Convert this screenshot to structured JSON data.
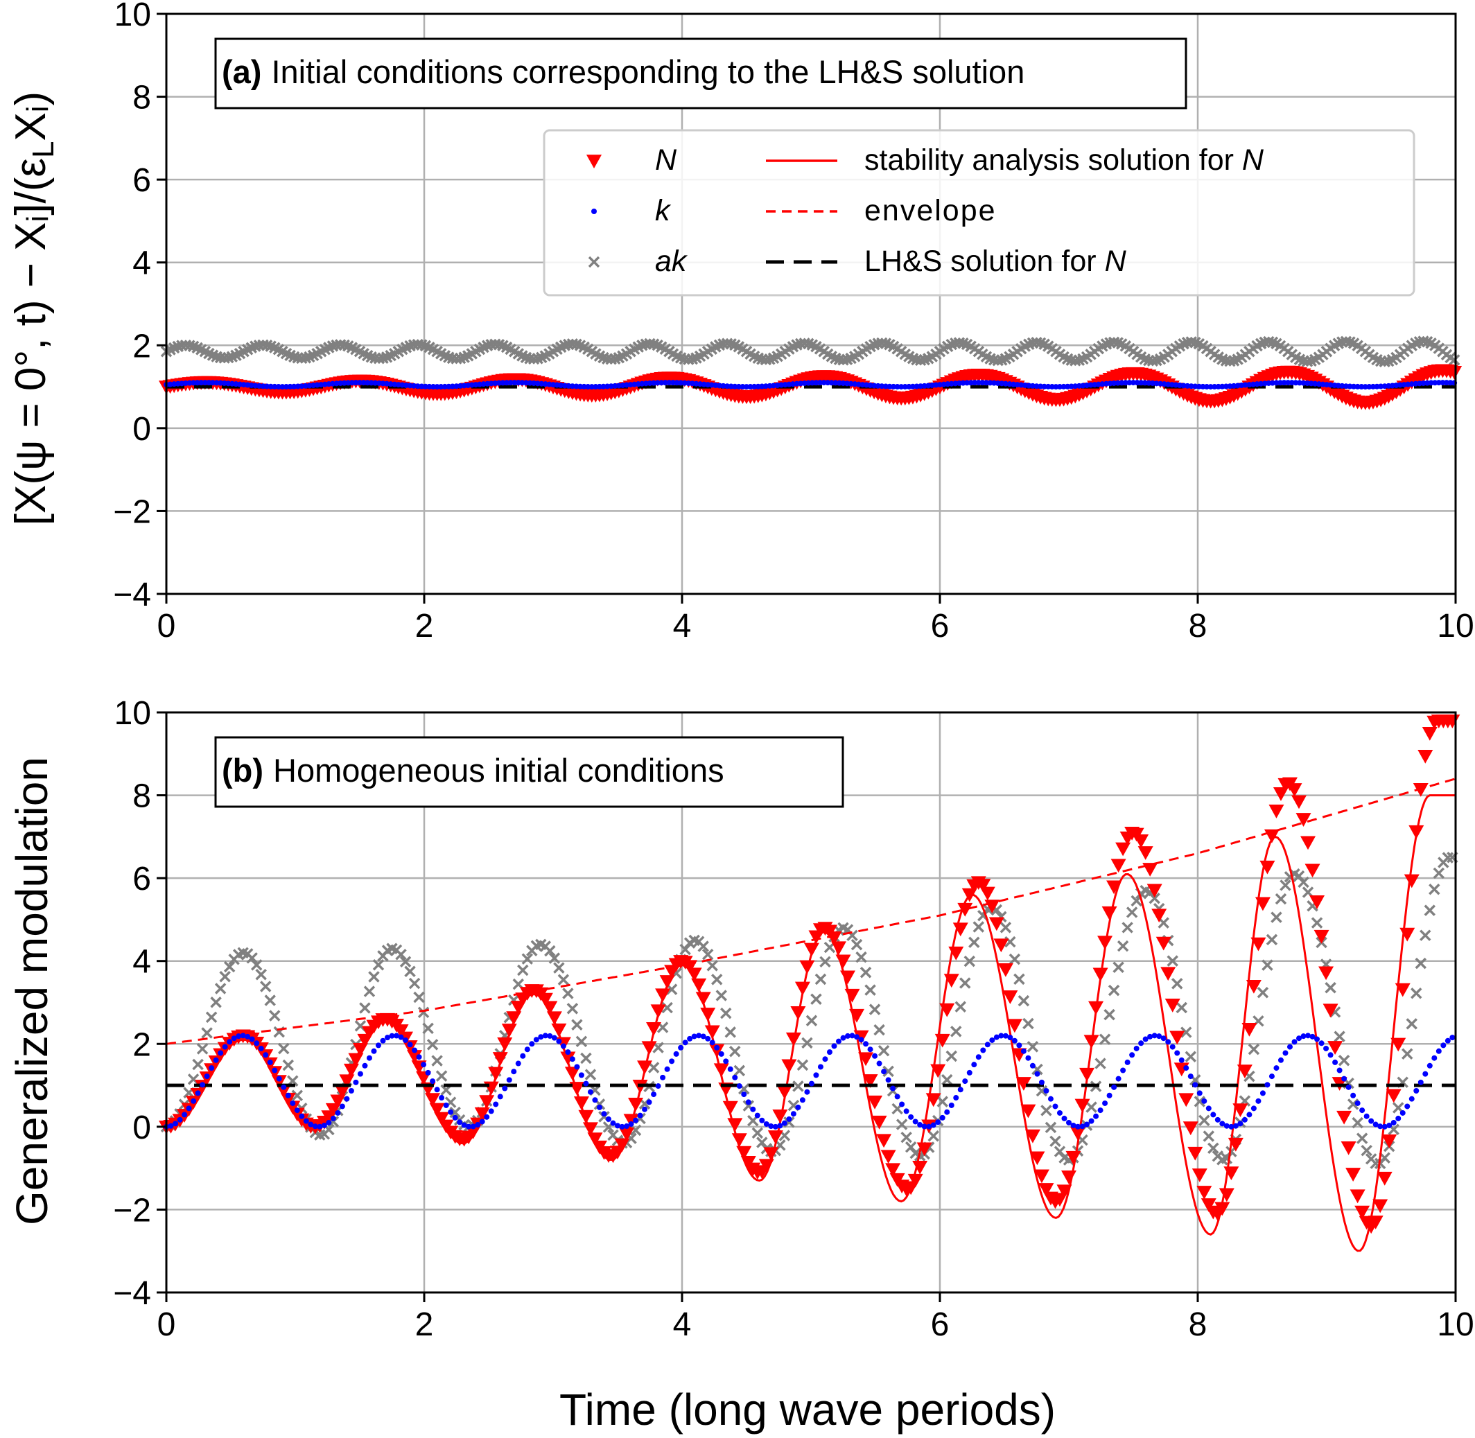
{
  "figure": {
    "ylabel_top": "[X(ψ = 0°, t) − Xᵢ]/(ε",
    "ylabel_sub": "L",
    "ylabel_tail": "Xᵢ)",
    "ylabel_main": "Generalized modulation",
    "xlabel": "Time (long wave periods)"
  },
  "legend": {
    "N": "N",
    "k": "k",
    "ak": "ak",
    "stability": "stability analysis solution for ",
    "stability_var": "N",
    "envelope": "envelope",
    "lhs": "LH&S solution for ",
    "lhs_var": "N"
  },
  "colors": {
    "N": "#ff0000",
    "k": "#0000ff",
    "ak": "#808080",
    "lhs": "#000000",
    "grid": "#b0b0b0"
  },
  "chart_data": [
    {
      "type": "line",
      "panel_tag": "(a)",
      "title": "Initial conditions corresponding to the LH&S solution",
      "xlim": [
        0,
        10
      ],
      "ylim": [
        -4,
        10
      ],
      "xticks": [
        "0",
        "2",
        "4",
        "6",
        "8",
        "10"
      ],
      "yticks": [
        "−4",
        "−2",
        "0",
        "2",
        "4",
        "6",
        "8",
        "10"
      ],
      "grid": true,
      "legend_position": "upper-right",
      "long_wave_period": 1,
      "series": [
        {
          "name": "N",
          "marker": "triangle-down",
          "color": "#ff0000",
          "description": "oscillates about 1 with amplitude growing from about 0.1 at t=0 to about 0.4 at t=10, period about 1.2",
          "mean": 1.0,
          "amp_start": 0.1,
          "amp_end": 0.4,
          "period": 1.2
        },
        {
          "name": "k",
          "marker": "dot",
          "color": "#0000ff",
          "mean": 1.05,
          "amp_start": 0.05,
          "amp_end": 0.05,
          "period": 1.2
        },
        {
          "name": "ak",
          "marker": "x",
          "color": "#808080",
          "mean": 1.85,
          "amp_start": 0.15,
          "amp_end": 0.25,
          "period": 0.6
        },
        {
          "name": "stability analysis solution for N",
          "line": "solid",
          "color": "#ff0000",
          "mean": 1.0,
          "amp_start": 0.1,
          "amp_end": 0.4,
          "period": 1.2
        },
        {
          "name": "LH&S solution for N",
          "line": "dashed",
          "color": "#000000",
          "x": [
            0,
            10
          ],
          "values": [
            1,
            1
          ]
        }
      ]
    },
    {
      "type": "line",
      "panel_tag": "(b)",
      "title": "Homogeneous initial conditions",
      "xlim": [
        0,
        10
      ],
      "ylim": [
        -4,
        10
      ],
      "xticks": [
        "0",
        "2",
        "4",
        "6",
        "8",
        "10"
      ],
      "yticks": [
        "−4",
        "−2",
        "0",
        "2",
        "4",
        "6",
        "8",
        "10"
      ],
      "grid": true,
      "series": [
        {
          "name": "N",
          "marker": "triangle-down",
          "color": "#ff0000",
          "peaks": [
            [
              0.6,
              2.2
            ],
            [
              1.7,
              2.6
            ],
            [
              2.85,
              3.3
            ],
            [
              4.0,
              4.0
            ],
            [
              5.1,
              4.8
            ],
            [
              6.3,
              5.9
            ],
            [
              7.5,
              7.1
            ],
            [
              8.7,
              8.3
            ],
            [
              9.85,
              9.8
            ]
          ],
          "troughs": [
            [
              1.15,
              0.0
            ],
            [
              2.3,
              -0.3
            ],
            [
              3.45,
              -0.7
            ],
            [
              4.6,
              -1.1
            ],
            [
              5.75,
              -1.5
            ],
            [
              6.9,
              -1.8
            ],
            [
              8.15,
              -2.1
            ],
            [
              9.35,
              -2.4
            ]
          ]
        },
        {
          "name": "k",
          "marker": "dot",
          "color": "#0000ff",
          "mean": 1.1,
          "amplitude": 1.1,
          "period": 1.18,
          "start": 0
        },
        {
          "name": "ak",
          "marker": "x",
          "color": "#808080",
          "peaks": [
            [
              0.6,
              4.2
            ],
            [
              1.75,
              4.3
            ],
            [
              2.9,
              4.4
            ],
            [
              4.1,
              4.5
            ],
            [
              5.25,
              4.8
            ],
            [
              6.4,
              5.3
            ],
            [
              7.6,
              5.7
            ],
            [
              8.75,
              6.1
            ],
            [
              9.95,
              6.5
            ]
          ],
          "troughs": [
            [
              1.2,
              -0.2
            ],
            [
              2.35,
              0.0
            ],
            [
              3.55,
              -0.4
            ],
            [
              4.7,
              -0.6
            ],
            [
              5.85,
              -0.7
            ],
            [
              7.0,
              -0.8
            ],
            [
              8.2,
              -0.8
            ],
            [
              9.4,
              -0.9
            ]
          ]
        },
        {
          "name": "stability analysis solution for N",
          "line": "solid",
          "color": "#ff0000",
          "peaks": [
            [
              0.6,
              2.1
            ],
            [
              1.7,
              2.6
            ],
            [
              2.85,
              3.2
            ],
            [
              4.0,
              3.9
            ],
            [
              5.1,
              4.7
            ],
            [
              6.25,
              5.6
            ],
            [
              7.45,
              6.1
            ],
            [
              8.6,
              7.0
            ],
            [
              9.8,
              8.0
            ]
          ],
          "troughs": [
            [
              1.15,
              0.0
            ],
            [
              2.3,
              -0.4
            ],
            [
              3.45,
              -0.8
            ],
            [
              4.6,
              -1.3
            ],
            [
              5.7,
              -1.8
            ],
            [
              6.9,
              -2.2
            ],
            [
              8.1,
              -2.6
            ],
            [
              9.25,
              -3.0
            ]
          ]
        },
        {
          "name": "envelope",
          "line": "dotted-dashed",
          "color": "#ff0000",
          "x": [
            0,
            2,
            4,
            6,
            8,
            10
          ],
          "values": [
            2.0,
            2.8,
            3.9,
            5.1,
            6.6,
            8.4
          ]
        },
        {
          "name": "LH&S solution for N",
          "line": "dashed",
          "color": "#000000",
          "x": [
            0,
            10
          ],
          "values": [
            1,
            1
          ]
        }
      ]
    }
  ]
}
